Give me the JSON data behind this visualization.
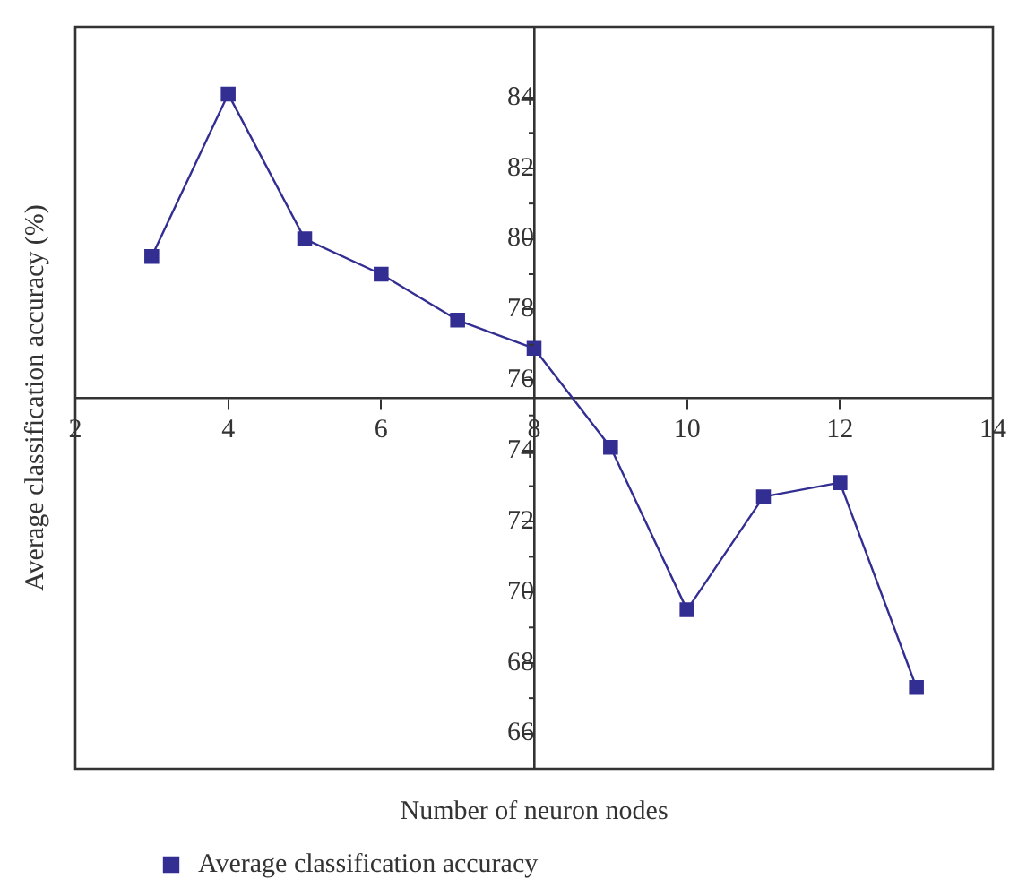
{
  "chart_data": {
    "type": "line",
    "xlabel": "Number of neuron nodes",
    "ylabel": "Average classification accuracy (%)",
    "x": [
      3,
      4,
      5,
      6,
      7,
      8,
      9,
      10,
      11,
      12,
      13
    ],
    "series": [
      {
        "name": "Average classification accuracy",
        "color": "#332e92",
        "values": [
          79.5,
          84.1,
          80.0,
          79.0,
          77.7,
          76.9,
          74.1,
          69.5,
          72.7,
          73.1,
          67.3
        ]
      }
    ],
    "xlim": [
      2,
      14
    ],
    "xticks": [
      2,
      4,
      6,
      8,
      10,
      12,
      14
    ],
    "ylim": [
      65,
      86
    ],
    "yticks": [
      66,
      68,
      70,
      72,
      74,
      76,
      78,
      80,
      82,
      84
    ],
    "marker": "square",
    "grid": false,
    "legend": "bottom left"
  }
}
